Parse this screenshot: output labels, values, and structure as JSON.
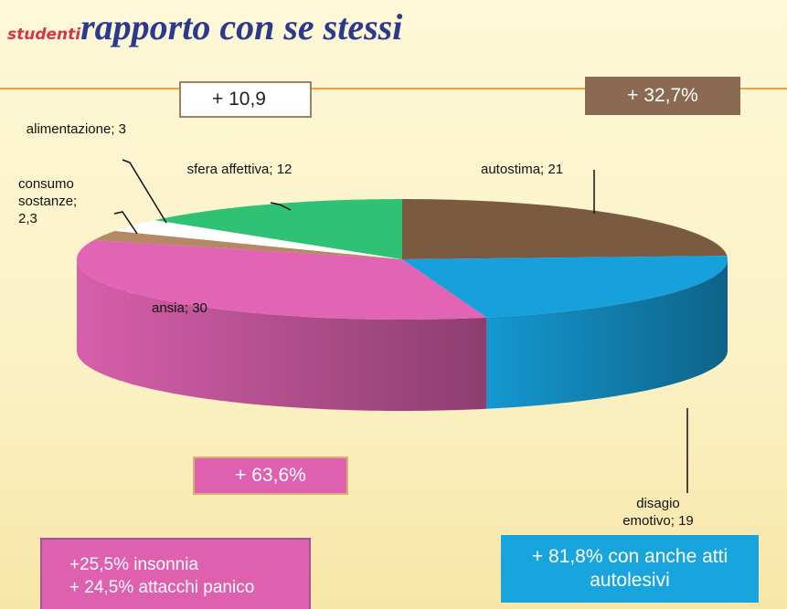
{
  "chart_data": {
    "type": "pie",
    "subtitle": "studenti",
    "title": "rapporto con se stessi",
    "values": [
      21,
      19,
      30,
      2.3,
      3,
      12
    ],
    "value_labels": [
      "autostima; 21",
      "disagio emotivo; 19",
      "ansia; 30",
      "consumo sostanze; 2,3",
      "alimentazione; 3",
      "sfera affettiva; 12"
    ],
    "colors": [
      "#7b5a42",
      "#16a0dc",
      "#e264b4",
      "#b58866",
      "#ffffff",
      "#2fc275"
    ],
    "annotations": [
      "+ 10,9",
      "+ 32,7%",
      "+ 63,6%",
      "+25,5% insonnia",
      "+ 24,5% attacchi panico",
      "+ 81,8% con anche atti autolesivi"
    ]
  }
}
